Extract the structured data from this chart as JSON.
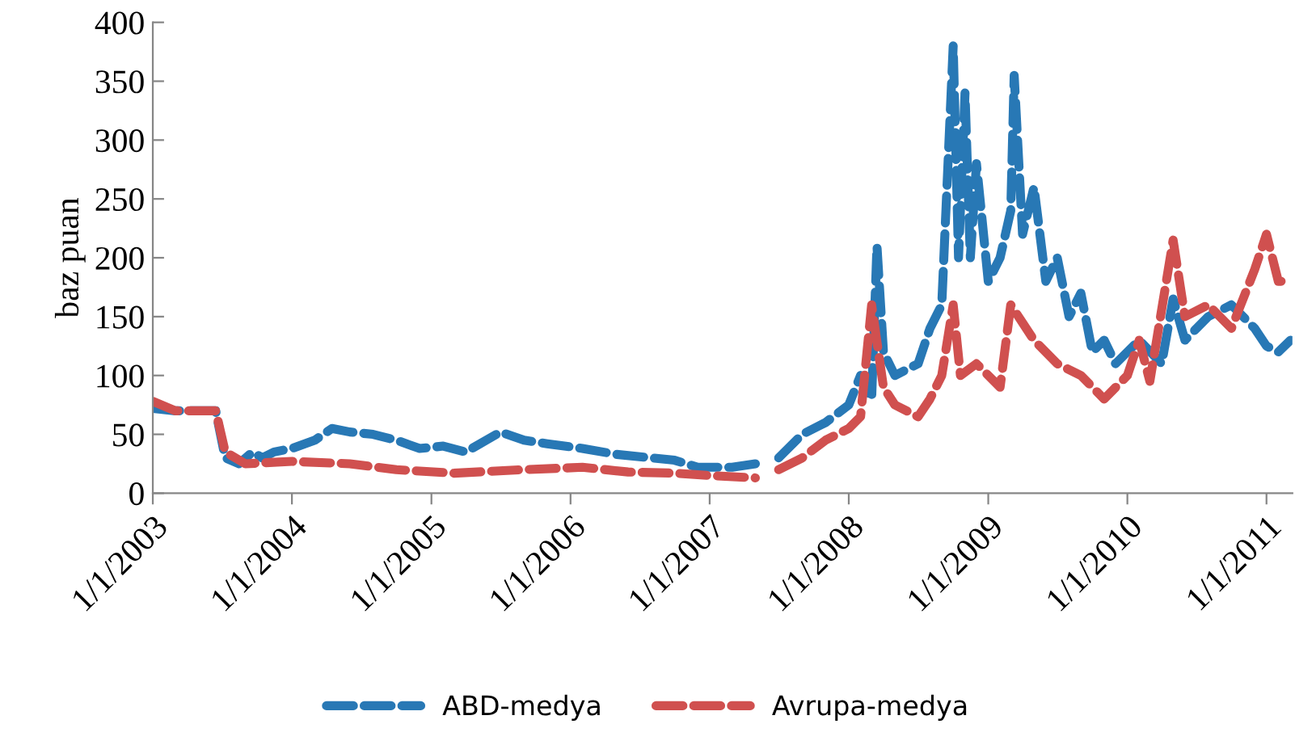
{
  "chart_data": {
    "type": "line",
    "ylabel": "baz puan",
    "ylim": [
      0,
      400
    ],
    "yticks": [
      0,
      50,
      100,
      150,
      200,
      250,
      300,
      350,
      400
    ],
    "xlim": [
      "2003-01-01",
      "2011-03-10"
    ],
    "xticks": [
      {
        "value": "2003-01-01",
        "label": "1/1/2003"
      },
      {
        "value": "2004-01-01",
        "label": "1/1/2004"
      },
      {
        "value": "2005-01-01",
        "label": "1/1/2005"
      },
      {
        "value": "2006-01-01",
        "label": "1/1/2006"
      },
      {
        "value": "2007-01-01",
        "label": "1/1/2007"
      },
      {
        "value": "2008-01-01",
        "label": "1/1/2008"
      },
      {
        "value": "2009-01-01",
        "label": "1/1/2009"
      },
      {
        "value": "2010-01-01",
        "label": "1/1/2010"
      },
      {
        "value": "2011-01-01",
        "label": "1/1/2011"
      }
    ],
    "grid": false,
    "legend": "bottom",
    "line_style": "dashed",
    "marker": "none",
    "series": [
      {
        "name": "ABD-medya",
        "color": "#2878b5",
        "x": [
          "2003-01-01",
          "2003-03-01",
          "2003-06-15",
          "2003-07-10",
          "2003-08-15",
          "2003-09-20",
          "2003-10-15",
          "2003-11-15",
          "2004-01-01",
          "2004-03-01",
          "2004-04-15",
          "2004-06-01",
          "2004-08-01",
          "2004-10-01",
          "2004-12-01",
          "2005-02-01",
          "2005-04-01",
          "2005-07-01",
          "2005-09-01",
          "2005-11-01",
          "2006-02-01",
          "2006-05-01",
          "2006-08-01",
          "2006-10-01",
          "2006-12-01",
          "2007-03-01",
          "2007-05-01",
          "2007-06-01",
          "2007-07-01",
          "2007-09-01",
          "2007-11-01",
          "2008-01-01",
          "2008-02-01",
          "2008-03-01",
          "2008-03-15",
          "2008-04-01",
          "2008-05-01",
          "2008-07-01",
          "2008-08-01",
          "2008-09-01",
          "2008-10-01",
          "2008-10-15",
          "2008-11-01",
          "2008-11-15",
          "2008-12-01",
          "2009-01-01",
          "2009-02-01",
          "2009-03-01",
          "2009-03-10",
          "2009-04-01",
          "2009-05-01",
          "2009-06-01",
          "2009-07-01",
          "2009-08-01",
          "2009-09-01",
          "2009-10-01",
          "2009-11-01",
          "2009-12-01",
          "2010-02-01",
          "2010-04-01",
          "2010-05-01",
          "2010-06-01",
          "2010-08-01",
          "2010-10-01",
          "2010-12-01",
          "2011-01-01",
          "2011-02-01",
          "2011-03-05"
        ],
        "values": [
          72,
          70,
          70,
          30,
          25,
          35,
          30,
          35,
          38,
          45,
          55,
          52,
          50,
          45,
          38,
          40,
          35,
          52,
          45,
          42,
          38,
          33,
          30,
          28,
          22,
          22,
          25,
          null,
          30,
          50,
          60,
          75,
          100,
          80,
          210,
          120,
          100,
          110,
          140,
          160,
          380,
          200,
          340,
          200,
          280,
          180,
          200,
          240,
          355,
          220,
          260,
          180,
          200,
          150,
          170,
          120,
          130,
          110,
          130,
          110,
          165,
          130,
          150,
          160,
          140,
          125,
          120,
          130
        ]
      },
      {
        "name": "Avrupa-medya",
        "color": "#d0504f",
        "x": [
          "2003-01-01",
          "2003-03-01",
          "2003-06-15",
          "2003-07-10",
          "2003-09-01",
          "2004-01-01",
          "2004-06-01",
          "2004-10-01",
          "2005-03-01",
          "2005-09-01",
          "2006-02-01",
          "2006-06-01",
          "2006-10-01",
          "2007-01-01",
          "2007-05-01",
          "2007-06-01",
          "2007-07-01",
          "2007-09-01",
          "2007-11-01",
          "2008-01-01",
          "2008-02-01",
          "2008-03-01",
          "2008-04-01",
          "2008-05-01",
          "2008-07-01",
          "2008-08-01",
          "2008-09-01",
          "2008-10-01",
          "2008-10-20",
          "2008-12-01",
          "2009-02-01",
          "2009-03-01",
          "2009-05-01",
          "2009-07-01",
          "2009-09-01",
          "2009-11-01",
          "2010-01-01",
          "2010-02-01",
          "2010-03-01",
          "2010-05-01",
          "2010-06-01",
          "2010-08-01",
          "2010-10-01",
          "2010-12-01",
          "2011-01-01",
          "2011-02-01",
          "2011-03-05"
        ],
        "values": [
          78,
          70,
          70,
          35,
          25,
          27,
          25,
          20,
          17,
          20,
          22,
          18,
          17,
          15,
          13,
          null,
          20,
          30,
          45,
          55,
          65,
          160,
          90,
          75,
          65,
          80,
          100,
          160,
          100,
          110,
          90,
          160,
          130,
          110,
          100,
          80,
          100,
          130,
          95,
          215,
          150,
          160,
          140,
          190,
          220,
          180,
          180
        ]
      }
    ]
  }
}
